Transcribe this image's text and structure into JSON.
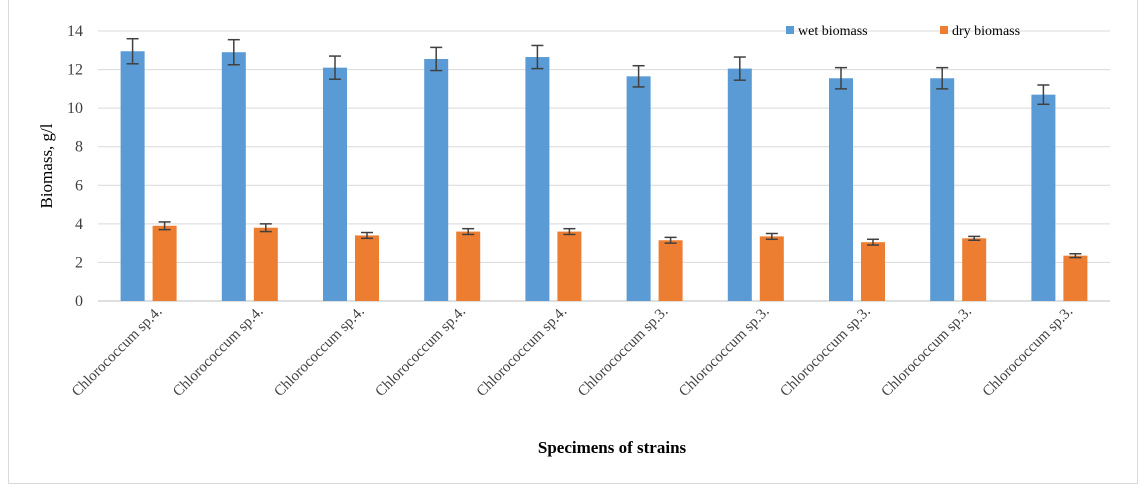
{
  "chart_data": {
    "type": "bar",
    "title": "",
    "xlabel": "Specimens of strains",
    "ylabel": "Biomass, g/l",
    "ylim": [
      0,
      14
    ],
    "yticks": [
      0,
      2,
      4,
      6,
      8,
      10,
      12,
      14
    ],
    "grid": true,
    "legend_position": "top-right",
    "categories": [
      "Chlorococcum sp.4.",
      "Chlorococcum sp.4.",
      "Chlorococcum sp.4.",
      "Chlorococcum sp.4.",
      "Chlorococcum sp.4.",
      "Chlorococcum sp.3.",
      "Chlorococcum sp.3.",
      "Chlorococcum sp.3.",
      "Chlorococcum sp.3.",
      "Chlorococcum sp.3."
    ],
    "series": [
      {
        "name": "wet biomass",
        "color": "#5b9bd5",
        "values": [
          12.95,
          12.9,
          12.1,
          12.55,
          12.65,
          11.65,
          12.05,
          11.55,
          11.55,
          10.7
        ],
        "errors": [
          0.65,
          0.65,
          0.6,
          0.6,
          0.6,
          0.55,
          0.6,
          0.55,
          0.55,
          0.5
        ]
      },
      {
        "name": "dry biomass",
        "color": "#ed7d31",
        "values": [
          3.9,
          3.8,
          3.4,
          3.6,
          3.6,
          3.15,
          3.35,
          3.05,
          3.25,
          2.35
        ],
        "errors": [
          0.2,
          0.2,
          0.15,
          0.15,
          0.15,
          0.15,
          0.15,
          0.15,
          0.1,
          0.1
        ]
      }
    ],
    "colors": {
      "grid": "#d9d9d9",
      "axis": "#bfbfbf",
      "error_bar": "#404040"
    }
  }
}
